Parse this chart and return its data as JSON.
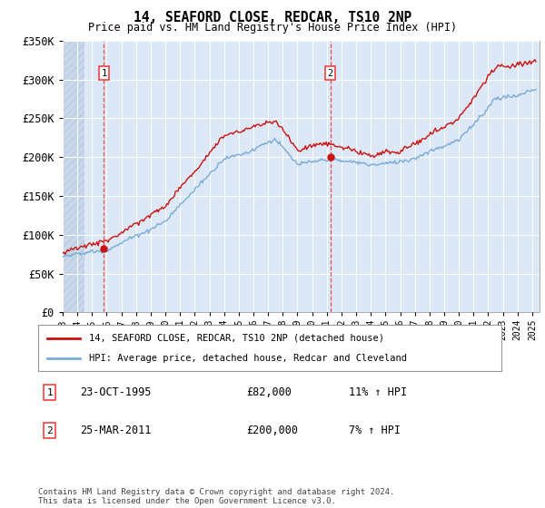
{
  "title": "14, SEAFORD CLOSE, REDCAR, TS10 2NP",
  "subtitle": "Price paid vs. HM Land Registry's House Price Index (HPI)",
  "legend_line1": "14, SEAFORD CLOSE, REDCAR, TS10 2NP (detached house)",
  "legend_line2": "HPI: Average price, detached house, Redcar and Cleveland",
  "purchase1_date": "23-OCT-1995",
  "purchase1_price": 82000,
  "purchase1_hpi": "11% ↑ HPI",
  "purchase2_date": "25-MAR-2011",
  "purchase2_price": 200000,
  "purchase2_hpi": "7% ↑ HPI",
  "footnote": "Contains HM Land Registry data © Crown copyright and database right 2024.\nThis data is licensed under the Open Government Licence v3.0.",
  "ylim": [
    0,
    350000
  ],
  "yticks": [
    0,
    50000,
    100000,
    150000,
    200000,
    250000,
    300000,
    350000
  ],
  "ytick_labels": [
    "£0",
    "£50K",
    "£100K",
    "£150K",
    "£200K",
    "£250K",
    "£300K",
    "£350K"
  ],
  "hpi_color": "#7aacd6",
  "price_color": "#cc1111",
  "vline_color": "#ee3333",
  "background_plot": "#dce8f5",
  "hatch_color": "#c8d8ea",
  "grid_color": "#ffffff",
  "label_box_color": "#ee3333"
}
